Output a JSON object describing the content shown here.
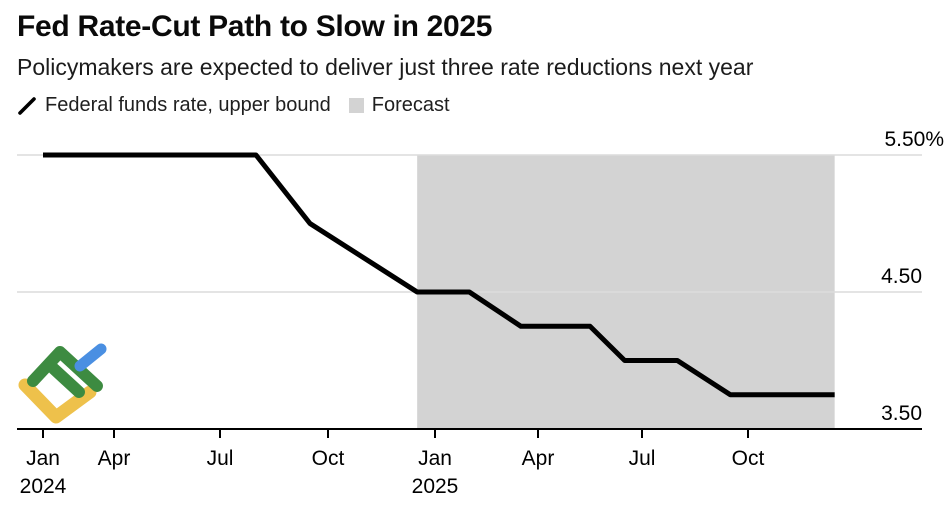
{
  "header": {
    "title": "Fed Rate-Cut Path to Slow in 2025",
    "subtitle": "Policymakers are expected to deliver just three rate reductions next year"
  },
  "legend": {
    "items": [
      {
        "label": "Federal funds rate, upper bound",
        "swatch": "diagonal-line-swatch"
      },
      {
        "label": "Forecast",
        "swatch": "filled-square-swatch"
      }
    ]
  },
  "y_axis_labels": [
    "5.50%",
    "4.50",
    "3.50"
  ],
  "x_axis_labels": [
    "Jan",
    "Apr",
    "Jul",
    "Oct",
    "Jan",
    "Apr",
    "Jul",
    "Oct"
  ],
  "x_year_labels": [
    "2024",
    "2025"
  ],
  "colors": {
    "line": "#000000",
    "forecast_band": "#d3d3d3",
    "gridline": "#dcdcdc",
    "axis": "#000000",
    "logo_green": "#3d8b41",
    "logo_yellow": "#eec14b",
    "logo_blue": "#4a8fe2"
  },
  "chart_data": {
    "type": "line",
    "title": "Fed Rate-Cut Path to Slow in 2025",
    "subtitle": "Policymakers are expected to deliver just three rate reductions next year",
    "unit": "%",
    "legend_position": "top",
    "y_axis": {
      "range": [
        3.5,
        5.5
      ],
      "ticks": [
        5.5,
        4.5,
        3.5
      ],
      "tick_labels": [
        "5.50%",
        "4.50",
        "3.50"
      ],
      "gridlines": true
    },
    "x_axis": {
      "start": "Jan 2024",
      "end": "Dec 2025",
      "tick_labels": [
        "Jan",
        "Apr",
        "Jul",
        "Oct",
        "Jan",
        "Apr",
        "Jul",
        "Oct"
      ],
      "years": [
        "2024",
        "2025"
      ],
      "months_per_tick": 3
    },
    "series": [
      {
        "name": "Federal funds rate, upper bound",
        "color": "#000000",
        "points": [
          {
            "date": "Jan 2024",
            "m": 0,
            "value": 5.5
          },
          {
            "date": "Aug 2024",
            "m": 7,
            "value": 5.5
          },
          {
            "date": "Sep 2024",
            "m": 8.5,
            "value": 5.0
          },
          {
            "date": "Dec 2024",
            "m": 11.5,
            "value": 4.5
          },
          {
            "date": "Feb 2025",
            "m": 13,
            "value": 4.5
          },
          {
            "date": "Mar 2025",
            "m": 14.5,
            "value": 4.25
          },
          {
            "date": "May 2025",
            "m": 16.5,
            "value": 4.25
          },
          {
            "date": "Jun 2025",
            "m": 17.5,
            "value": 4.0
          },
          {
            "date": "Aug 2025",
            "m": 19,
            "value": 4.0
          },
          {
            "date": "Sep 2025",
            "m": 20.5,
            "value": 3.75
          },
          {
            "date": "Dec 2025",
            "m": 23.5,
            "value": 3.75
          }
        ]
      }
    ],
    "forecast_region": {
      "label": "Forecast",
      "start": "Dec 2024",
      "end": "Dec 2025",
      "start_m": 11.5,
      "end_m": 23.5,
      "color": "#d3d3d3"
    }
  }
}
